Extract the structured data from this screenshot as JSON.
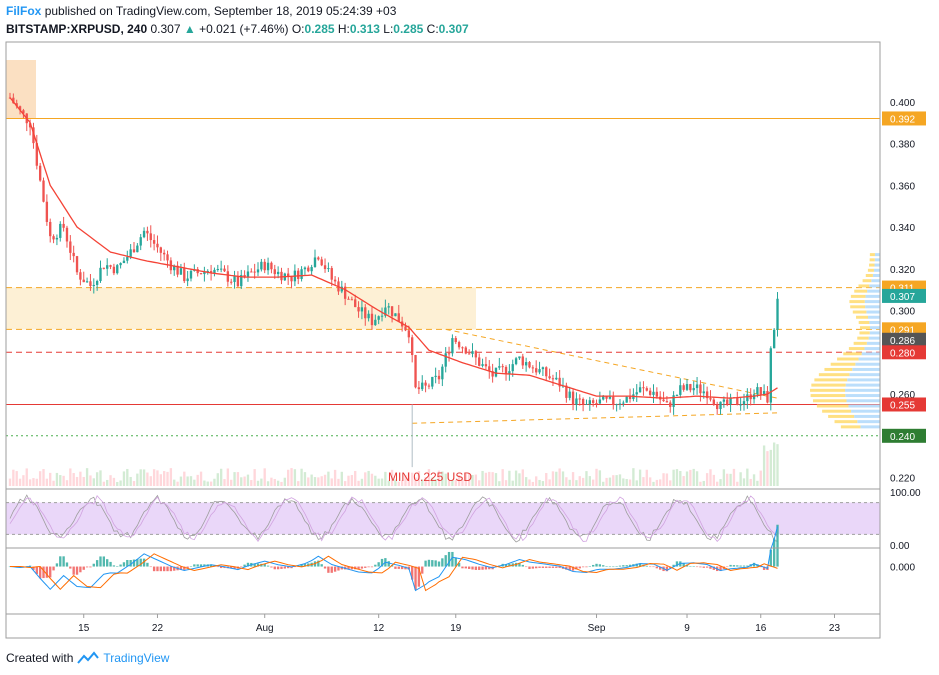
{
  "header": {
    "author": "FilFox",
    "published_text": "published on TradingView.com, September 18, 2019 05:24:39 +03",
    "symbol": "BITSTAMP:XRPUSD, 240",
    "last": "0.307",
    "change_arrow": "▲",
    "change": "+0.021 (+7.46%)",
    "o_label": "O:",
    "o_value": "0.285",
    "h_label": "H:",
    "h_value": "0.313",
    "l_label": "L:",
    "l_value": "0.285",
    "c_label": "C:",
    "c_value": "0.307"
  },
  "footer": {
    "created_with": "Created with",
    "brand": "TradingView",
    "logo_icon": "tradingview-logo-icon"
  },
  "colors": {
    "up": "#26a69a",
    "down": "#ef5350",
    "ma": "#f44336",
    "level_orange": "#f5a623",
    "zone": "#fdf0d5",
    "rsi_band": "#e1c6f7",
    "dashed_red": "#e53935",
    "dashed_green": "#4caf50",
    "support_red": "#e53935"
  },
  "chart_data": [
    {
      "type": "candlestick",
      "title": "BITSTAMP:XRPUSD, 240",
      "x_tick_labels": [
        "15",
        "22",
        "Aug",
        "12",
        "19",
        "Sep",
        "9",
        "16",
        "23"
      ],
      "y_tick_labels": [
        "0.400",
        "0.380",
        "0.360",
        "0.340",
        "0.320",
        "0.300",
        "0.260",
        "0.220"
      ],
      "ylim": [
        0.215,
        0.42
      ],
      "annotation": "MIN 0.225 USD",
      "price_badges": [
        {
          "label": "0.392",
          "value": 0.392,
          "color": "#f5a623"
        },
        {
          "label": "0.311",
          "value": 0.311,
          "color": "#f5a623"
        },
        {
          "label": "0.307",
          "value": 0.307,
          "color": "#26a69a"
        },
        {
          "label": "0.291",
          "value": 0.291,
          "color": "#f5a623"
        },
        {
          "label": "0.286",
          "value": 0.286,
          "color": "#555555"
        },
        {
          "label": "0.280",
          "value": 0.28,
          "color": "#e53935"
        },
        {
          "label": "0.255",
          "value": 0.255,
          "color": "#e53935"
        },
        {
          "label": "0.240",
          "value": 0.24,
          "color": "#2e7d32"
        }
      ],
      "horizontal_levels": [
        {
          "value": 0.392,
          "style": "solid",
          "color": "#f5a623"
        },
        {
          "value": 0.311,
          "style": "dashed",
          "color": "#f5a623"
        },
        {
          "value": 0.291,
          "style": "dashed",
          "color": "#f5a623"
        },
        {
          "value": 0.28,
          "style": "dashed",
          "color": "#e53935"
        },
        {
          "value": 0.255,
          "style": "solid",
          "color": "#e53935"
        },
        {
          "value": 0.24,
          "style": "dotted",
          "color": "#4caf50"
        }
      ],
      "price_path": [
        [
          0,
          0.402
        ],
        [
          3,
          0.395
        ],
        [
          6,
          0.39
        ],
        [
          9,
          0.362
        ],
        [
          12,
          0.335
        ],
        [
          16,
          0.34
        ],
        [
          20,
          0.318
        ],
        [
          24,
          0.312
        ],
        [
          28,
          0.322
        ],
        [
          32,
          0.32
        ],
        [
          36,
          0.328
        ],
        [
          40,
          0.338
        ],
        [
          44,
          0.33
        ],
        [
          48,
          0.322
        ],
        [
          52,
          0.316
        ],
        [
          56,
          0.318
        ],
        [
          60,
          0.32
        ],
        [
          64,
          0.317
        ],
        [
          68,
          0.313
        ],
        [
          72,
          0.318
        ],
        [
          76,
          0.322
        ],
        [
          80,
          0.318
        ],
        [
          84,
          0.316
        ],
        [
          88,
          0.32
        ],
        [
          92,
          0.327
        ],
        [
          96,
          0.315
        ],
        [
          100,
          0.308
        ],
        [
          104,
          0.3
        ],
        [
          108,
          0.295
        ],
        [
          110,
          0.298
        ],
        [
          112,
          0.303
        ],
        [
          116,
          0.296
        ],
        [
          119,
          0.29
        ],
        [
          121,
          0.262
        ],
        [
          124,
          0.263
        ],
        [
          128,
          0.268
        ],
        [
          132,
          0.287
        ],
        [
          136,
          0.282
        ],
        [
          140,
          0.275
        ],
        [
          144,
          0.269
        ],
        [
          148,
          0.272
        ],
        [
          152,
          0.277
        ],
        [
          156,
          0.273
        ],
        [
          160,
          0.269
        ],
        [
          164,
          0.265
        ],
        [
          168,
          0.257
        ],
        [
          172,
          0.254
        ],
        [
          176,
          0.256
        ],
        [
          180,
          0.256
        ],
        [
          184,
          0.258
        ],
        [
          188,
          0.262
        ],
        [
          192,
          0.261
        ],
        [
          196,
          0.254
        ],
        [
          200,
          0.262
        ],
        [
          204,
          0.263
        ],
        [
          208,
          0.261
        ],
        [
          212,
          0.254
        ],
        [
          216,
          0.256
        ],
        [
          220,
          0.258
        ],
        [
          222,
          0.262
        ],
        [
          224,
          0.26
        ],
        [
          226,
          0.258
        ],
        [
          227,
          0.28
        ],
        [
          228,
          0.292
        ],
        [
          229,
          0.307
        ]
      ],
      "ma_path": [
        [
          0,
          0.402
        ],
        [
          6,
          0.39
        ],
        [
          12,
          0.36
        ],
        [
          20,
          0.34
        ],
        [
          30,
          0.328
        ],
        [
          40,
          0.324
        ],
        [
          50,
          0.321
        ],
        [
          60,
          0.318
        ],
        [
          70,
          0.316
        ],
        [
          80,
          0.316
        ],
        [
          90,
          0.317
        ],
        [
          100,
          0.31
        ],
        [
          110,
          0.3
        ],
        [
          119,
          0.292
        ],
        [
          125,
          0.281
        ],
        [
          135,
          0.275
        ],
        [
          145,
          0.27
        ],
        [
          155,
          0.269
        ],
        [
          165,
          0.264
        ],
        [
          175,
          0.259
        ],
        [
          185,
          0.259
        ],
        [
          195,
          0.258
        ],
        [
          205,
          0.259
        ],
        [
          215,
          0.258
        ],
        [
          222,
          0.259
        ],
        [
          226,
          0.26
        ],
        [
          229,
          0.263
        ]
      ],
      "x_count": 256,
      "tick_positions": [
        22,
        44,
        76,
        110,
        133,
        175,
        202,
        224,
        246
      ]
    },
    {
      "type": "line",
      "title": "",
      "y_tick_labels": [
        "100.00",
        "0.00"
      ],
      "ylim": [
        0,
        100
      ],
      "band": [
        20,
        80
      ]
    },
    {
      "type": "histogram",
      "title": "",
      "y_tick_labels": [
        "0.000"
      ],
      "ylim": [
        -0.025,
        0.008
      ]
    }
  ]
}
